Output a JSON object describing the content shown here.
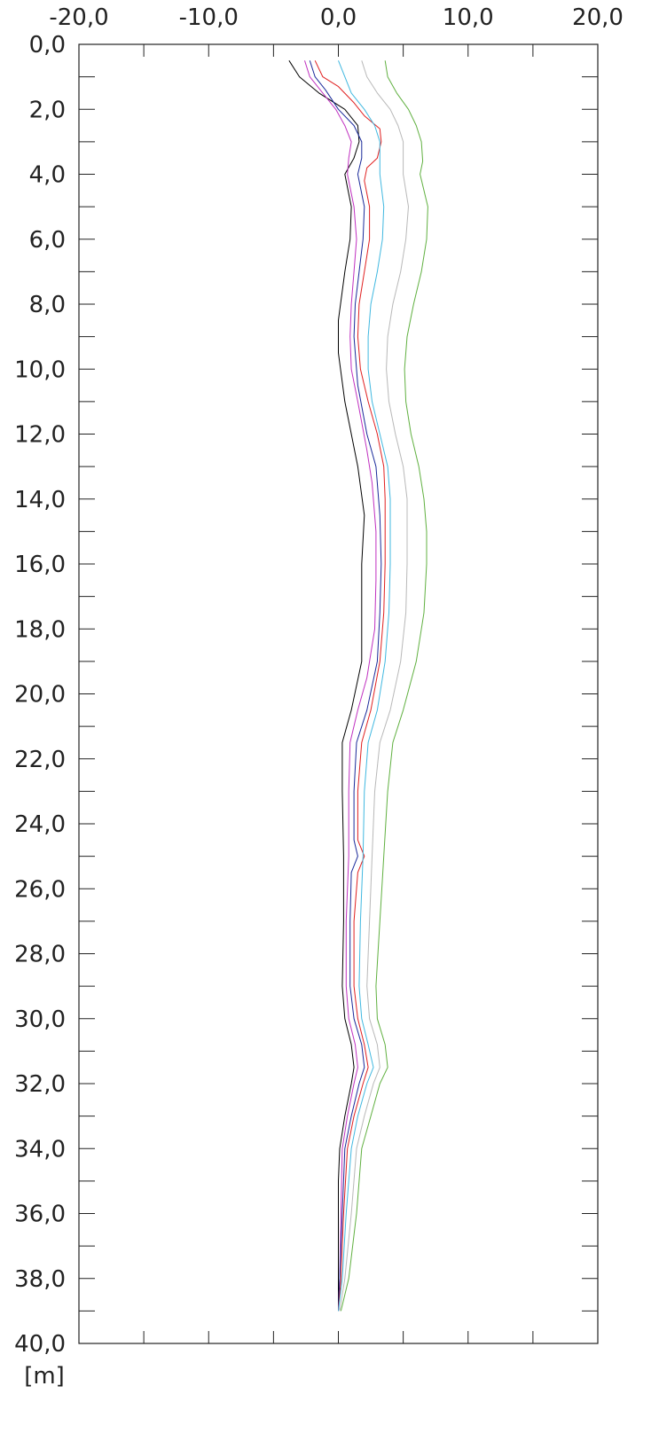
{
  "chart_data": {
    "type": "line",
    "orientation": "depth-profile",
    "title": "",
    "xlabel": "",
    "ylabel": "[m]",
    "xlim": [
      -20,
      20
    ],
    "ylim": [
      0,
      40
    ],
    "y_inverted": true,
    "grid": false,
    "x_ticks": [
      "-20,0",
      "-10,0",
      "0,0",
      "10,0",
      "20,0"
    ],
    "y_ticks": [
      "0,0",
      "2,0",
      "4,0",
      "6,0",
      "8,0",
      "10,0",
      "12,0",
      "14,0",
      "16,0",
      "18,0",
      "20,0",
      "22,0",
      "24,0",
      "26,0",
      "28,0",
      "30,0",
      "32,0",
      "34,0",
      "36,0",
      "38,0",
      "40,0"
    ],
    "series": [
      {
        "color": "#000000",
        "points": [
          [
            -3.8,
            0.5
          ],
          [
            -3.0,
            1.0
          ],
          [
            -1.5,
            1.5
          ],
          [
            0.5,
            2.0
          ],
          [
            1.5,
            2.5
          ],
          [
            1.6,
            3.0
          ],
          [
            1.2,
            3.5
          ],
          [
            0.5,
            4.0
          ],
          [
            1.0,
            5.0
          ],
          [
            0.9,
            6.0
          ],
          [
            0.5,
            7.0
          ],
          [
            0.0,
            8.5
          ],
          [
            0.0,
            9.5
          ],
          [
            0.5,
            11.0
          ],
          [
            1.5,
            13.0
          ],
          [
            2.0,
            14.5
          ],
          [
            1.8,
            16.0
          ],
          [
            1.8,
            17.5
          ],
          [
            1.8,
            19.0
          ],
          [
            1.0,
            20.5
          ],
          [
            0.3,
            21.5
          ],
          [
            0.3,
            23.0
          ],
          [
            0.4,
            25.0
          ],
          [
            0.4,
            27.0
          ],
          [
            0.3,
            29.0
          ],
          [
            0.5,
            30.0
          ],
          [
            1.0,
            30.8
          ],
          [
            1.2,
            31.5
          ],
          [
            1.0,
            32.0
          ],
          [
            0.5,
            33.0
          ],
          [
            0.1,
            34.0
          ],
          [
            0.0,
            35.0
          ],
          [
            0.0,
            37.0
          ],
          [
            0.0,
            39.0
          ]
        ]
      },
      {
        "color": "#c030c0",
        "points": [
          [
            -2.6,
            0.5
          ],
          [
            -2.2,
            1.0
          ],
          [
            -1.2,
            1.5
          ],
          [
            -0.2,
            2.0
          ],
          [
            0.5,
            2.5
          ],
          [
            1.0,
            3.0
          ],
          [
            0.8,
            3.5
          ],
          [
            0.7,
            4.0
          ],
          [
            1.2,
            5.0
          ],
          [
            1.4,
            6.0
          ],
          [
            1.2,
            7.0
          ],
          [
            1.0,
            8.0
          ],
          [
            0.9,
            9.0
          ],
          [
            1.0,
            10.0
          ],
          [
            1.5,
            11.0
          ],
          [
            2.2,
            12.5
          ],
          [
            2.6,
            13.5
          ],
          [
            2.9,
            15.0
          ],
          [
            2.9,
            16.5
          ],
          [
            2.8,
            18.0
          ],
          [
            2.2,
            19.5
          ],
          [
            1.5,
            20.5
          ],
          [
            0.9,
            21.5
          ],
          [
            0.8,
            23.0
          ],
          [
            0.8,
            25.0
          ],
          [
            0.6,
            27.0
          ],
          [
            0.6,
            29.0
          ],
          [
            0.8,
            30.0
          ],
          [
            1.3,
            30.8
          ],
          [
            1.5,
            31.5
          ],
          [
            1.2,
            32.0
          ],
          [
            0.7,
            33.0
          ],
          [
            0.3,
            34.0
          ],
          [
            0.2,
            36.0
          ],
          [
            0.1,
            38.0
          ],
          [
            0.0,
            39.0
          ]
        ]
      },
      {
        "color": "#1a2a9a",
        "points": [
          [
            -2.2,
            0.5
          ],
          [
            -1.8,
            1.0
          ],
          [
            -1.0,
            1.4
          ],
          [
            0.0,
            2.0
          ],
          [
            1.2,
            2.5
          ],
          [
            1.8,
            3.0
          ],
          [
            1.8,
            3.5
          ],
          [
            1.5,
            4.0
          ],
          [
            2.0,
            5.0
          ],
          [
            1.9,
            6.0
          ],
          [
            1.6,
            7.0
          ],
          [
            1.3,
            8.0
          ],
          [
            1.2,
            9.0
          ],
          [
            1.5,
            10.5
          ],
          [
            2.2,
            12.0
          ],
          [
            2.9,
            13.0
          ],
          [
            3.2,
            14.5
          ],
          [
            3.3,
            16.0
          ],
          [
            3.2,
            17.5
          ],
          [
            3.0,
            19.0
          ],
          [
            2.2,
            20.5
          ],
          [
            1.4,
            21.5
          ],
          [
            1.2,
            23.0
          ],
          [
            1.2,
            24.5
          ],
          [
            1.5,
            25.0
          ],
          [
            1.0,
            25.5
          ],
          [
            0.9,
            27.0
          ],
          [
            0.9,
            29.0
          ],
          [
            1.2,
            30.0
          ],
          [
            1.8,
            30.8
          ],
          [
            2.0,
            31.5
          ],
          [
            1.6,
            32.0
          ],
          [
            1.0,
            33.0
          ],
          [
            0.5,
            34.0
          ],
          [
            0.3,
            36.0
          ],
          [
            0.1,
            38.0
          ],
          [
            0.0,
            39.0
          ]
        ]
      },
      {
        "color": "#e02020",
        "points": [
          [
            -1.8,
            0.5
          ],
          [
            -1.2,
            1.0
          ],
          [
            0.0,
            1.3
          ],
          [
            1.2,
            1.8
          ],
          [
            2.0,
            2.2
          ],
          [
            3.2,
            2.6
          ],
          [
            3.3,
            3.0
          ],
          [
            3.0,
            3.5
          ],
          [
            2.2,
            3.8
          ],
          [
            2.0,
            4.2
          ],
          [
            2.4,
            5.0
          ],
          [
            2.4,
            6.0
          ],
          [
            2.0,
            7.0
          ],
          [
            1.6,
            8.0
          ],
          [
            1.5,
            9.0
          ],
          [
            1.7,
            10.0
          ],
          [
            2.3,
            11.0
          ],
          [
            3.0,
            12.0
          ],
          [
            3.5,
            13.0
          ],
          [
            3.6,
            14.0
          ],
          [
            3.6,
            15.0
          ],
          [
            3.6,
            16.0
          ],
          [
            3.5,
            17.5
          ],
          [
            3.2,
            19.0
          ],
          [
            2.5,
            20.5
          ],
          [
            1.8,
            21.5
          ],
          [
            1.5,
            23.0
          ],
          [
            1.5,
            24.5
          ],
          [
            2.0,
            25.0
          ],
          [
            1.5,
            25.5
          ],
          [
            1.2,
            27.0
          ],
          [
            1.2,
            29.0
          ],
          [
            1.5,
            30.0
          ],
          [
            2.0,
            30.8
          ],
          [
            2.3,
            31.5
          ],
          [
            1.9,
            32.0
          ],
          [
            1.2,
            33.0
          ],
          [
            0.7,
            34.0
          ],
          [
            0.4,
            36.0
          ],
          [
            0.2,
            38.0
          ],
          [
            0.0,
            39.0
          ]
        ]
      },
      {
        "color": "#40b8e0",
        "points": [
          [
            0.0,
            0.5
          ],
          [
            0.5,
            1.0
          ],
          [
            1.0,
            1.5
          ],
          [
            2.0,
            2.0
          ],
          [
            2.8,
            2.5
          ],
          [
            3.2,
            3.0
          ],
          [
            3.2,
            4.0
          ],
          [
            3.5,
            5.0
          ],
          [
            3.4,
            6.0
          ],
          [
            3.0,
            7.0
          ],
          [
            2.5,
            8.0
          ],
          [
            2.3,
            9.0
          ],
          [
            2.3,
            10.0
          ],
          [
            2.6,
            11.0
          ],
          [
            3.2,
            12.0
          ],
          [
            3.8,
            13.0
          ],
          [
            4.0,
            14.0
          ],
          [
            4.0,
            15.0
          ],
          [
            4.0,
            16.0
          ],
          [
            3.9,
            17.5
          ],
          [
            3.6,
            19.0
          ],
          [
            3.0,
            20.5
          ],
          [
            2.3,
            21.5
          ],
          [
            2.0,
            23.0
          ],
          [
            1.9,
            25.0
          ],
          [
            1.7,
            27.0
          ],
          [
            1.6,
            29.0
          ],
          [
            1.8,
            30.0
          ],
          [
            2.3,
            30.8
          ],
          [
            2.7,
            31.5
          ],
          [
            2.2,
            32.0
          ],
          [
            1.5,
            33.0
          ],
          [
            1.0,
            34.0
          ],
          [
            0.6,
            36.0
          ],
          [
            0.3,
            38.0
          ],
          [
            0.0,
            39.0
          ]
        ]
      },
      {
        "color": "#b8b8b8",
        "points": [
          [
            1.8,
            0.5
          ],
          [
            2.2,
            1.0
          ],
          [
            3.0,
            1.5
          ],
          [
            4.0,
            2.0
          ],
          [
            4.6,
            2.5
          ],
          [
            5.0,
            3.0
          ],
          [
            5.0,
            4.0
          ],
          [
            5.4,
            5.0
          ],
          [
            5.2,
            6.0
          ],
          [
            4.8,
            7.0
          ],
          [
            4.2,
            8.0
          ],
          [
            3.8,
            9.0
          ],
          [
            3.7,
            10.0
          ],
          [
            3.9,
            11.0
          ],
          [
            4.4,
            12.0
          ],
          [
            5.0,
            13.0
          ],
          [
            5.3,
            14.0
          ],
          [
            5.3,
            15.0
          ],
          [
            5.3,
            16.0
          ],
          [
            5.2,
            17.5
          ],
          [
            4.8,
            19.0
          ],
          [
            4.0,
            20.5
          ],
          [
            3.2,
            21.5
          ],
          [
            2.8,
            23.0
          ],
          [
            2.6,
            25.0
          ],
          [
            2.4,
            27.0
          ],
          [
            2.2,
            29.0
          ],
          [
            2.4,
            30.0
          ],
          [
            3.0,
            30.8
          ],
          [
            3.2,
            31.5
          ],
          [
            2.7,
            32.0
          ],
          [
            2.0,
            33.0
          ],
          [
            1.4,
            34.0
          ],
          [
            1.0,
            36.0
          ],
          [
            0.5,
            38.0
          ],
          [
            0.1,
            39.0
          ]
        ]
      },
      {
        "color": "#60b040",
        "points": [
          [
            3.6,
            0.5
          ],
          [
            3.8,
            1.0
          ],
          [
            4.5,
            1.5
          ],
          [
            5.4,
            2.0
          ],
          [
            6.0,
            2.5
          ],
          [
            6.4,
            3.0
          ],
          [
            6.5,
            3.6
          ],
          [
            6.3,
            4.0
          ],
          [
            6.6,
            4.5
          ],
          [
            6.9,
            5.0
          ],
          [
            6.8,
            6.0
          ],
          [
            6.4,
            7.0
          ],
          [
            5.8,
            8.0
          ],
          [
            5.3,
            9.0
          ],
          [
            5.1,
            10.0
          ],
          [
            5.2,
            11.0
          ],
          [
            5.6,
            12.0
          ],
          [
            6.2,
            13.0
          ],
          [
            6.6,
            14.0
          ],
          [
            6.8,
            15.0
          ],
          [
            6.8,
            16.0
          ],
          [
            6.6,
            17.5
          ],
          [
            6.0,
            19.0
          ],
          [
            5.0,
            20.5
          ],
          [
            4.2,
            21.5
          ],
          [
            3.8,
            23.0
          ],
          [
            3.5,
            25.0
          ],
          [
            3.2,
            27.0
          ],
          [
            2.9,
            29.0
          ],
          [
            3.0,
            30.0
          ],
          [
            3.6,
            30.8
          ],
          [
            3.8,
            31.5
          ],
          [
            3.2,
            32.0
          ],
          [
            2.5,
            33.0
          ],
          [
            1.8,
            34.0
          ],
          [
            1.4,
            36.0
          ],
          [
            0.8,
            38.0
          ],
          [
            0.2,
            39.0
          ]
        ]
      }
    ]
  }
}
